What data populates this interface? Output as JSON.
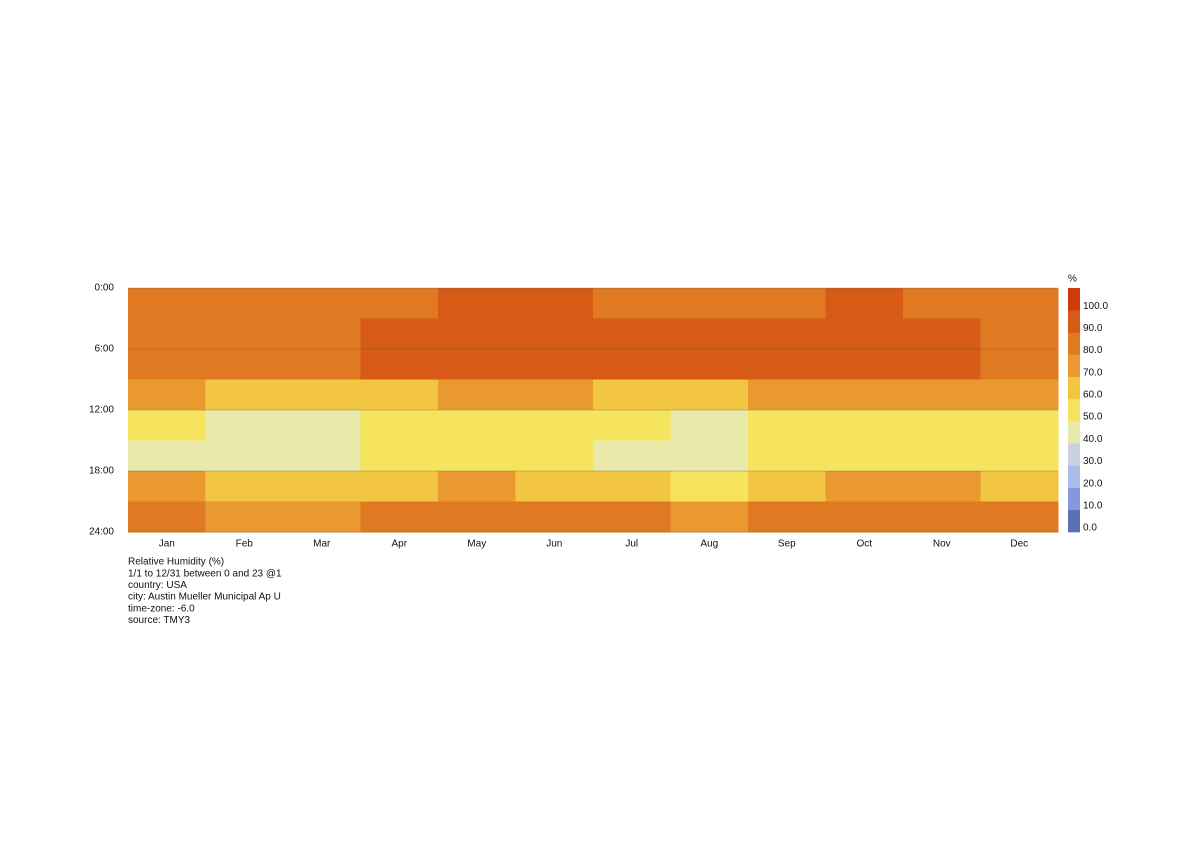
{
  "chart_data": {
    "type": "heatmap",
    "categories": [
      "Jan",
      "Feb",
      "Mar",
      "Apr",
      "May",
      "Jun",
      "Jul",
      "Aug",
      "Sep",
      "Oct",
      "Nov",
      "Dec"
    ],
    "values": [
      [
        85,
        88,
        88,
        70,
        50,
        48,
        70,
        80
      ],
      [
        82,
        86,
        86,
        68,
        48,
        45,
        62,
        76
      ],
      [
        85,
        88,
        88,
        66,
        48,
        45,
        60,
        78
      ],
      [
        88,
        90,
        90,
        68,
        52,
        50,
        66,
        82
      ],
      [
        92,
        94,
        94,
        76,
        58,
        56,
        72,
        86
      ],
      [
        90,
        93,
        93,
        72,
        55,
        52,
        66,
        84
      ],
      [
        86,
        90,
        90,
        68,
        50,
        48,
        60,
        80
      ],
      [
        86,
        90,
        90,
        66,
        48,
        46,
        58,
        78
      ],
      [
        88,
        92,
        92,
        70,
        52,
        50,
        66,
        82
      ],
      [
        90,
        92,
        92,
        74,
        56,
        54,
        72,
        86
      ],
      [
        88,
        90,
        90,
        72,
        55,
        52,
        70,
        84
      ],
      [
        84,
        86,
        86,
        70,
        52,
        50,
        68,
        80
      ]
    ],
    "ylim": [
      0,
      24
    ],
    "yticks": [
      {
        "value": 0,
        "label": "0:00"
      },
      {
        "value": 6,
        "label": "6:00"
      },
      {
        "value": 12,
        "label": "12:00"
      },
      {
        "value": 18,
        "label": "18:00"
      },
      {
        "value": 24,
        "label": "24:00"
      }
    ],
    "colorbar": {
      "title": "%",
      "ticks": [
        {
          "value": 0,
          "label": "0.0"
        },
        {
          "value": 10,
          "label": "10.0"
        },
        {
          "value": 20,
          "label": "20.0"
        },
        {
          "value": 30,
          "label": "30.0"
        },
        {
          "value": 40,
          "label": "40.0"
        },
        {
          "value": 50,
          "label": "50.0"
        },
        {
          "value": 60,
          "label": "60.0"
        },
        {
          "value": 70,
          "label": "70.0"
        },
        {
          "value": 80,
          "label": "80.0"
        },
        {
          "value": 90,
          "label": "90.0"
        },
        {
          "value": 100,
          "label": "100.0"
        }
      ],
      "colors": [
        "#5a72b0",
        "#8598d8",
        "#a9bde9",
        "#c9d3df",
        "#e9e9a9",
        "#f6e35e",
        "#f2c640",
        "#e9992f",
        "#e07a22",
        "#d75a17",
        "#cf3c0b"
      ]
    },
    "grid": true,
    "notes": [
      "Relative Humidity (%)",
      "1/1 to 12/31 between 0 and 23 @1",
      "country: USA",
      "city: Austin Mueller Municipal Ap  U",
      "time-zone: -6.0",
      "source: TMY3"
    ]
  }
}
